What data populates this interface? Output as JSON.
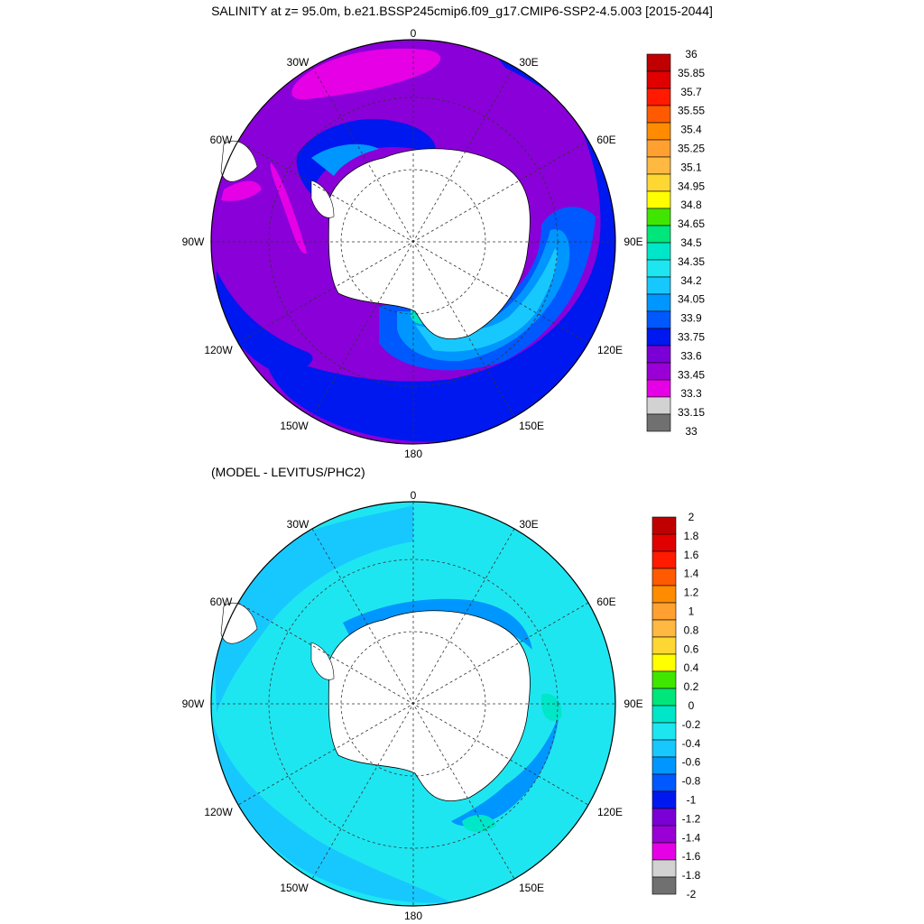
{
  "title": "SALINITY at z=  95.0m, b.e21.BSSP245cmip6.f09_g17.CMIP6-SSP2-4.5.003 [2015-2044]",
  "subtitle": "(MODEL - LEVITUS/PHC2)",
  "map_top": {
    "name": "salinity-map",
    "lon_labels": {
      "top": "0",
      "upper_left": "30W",
      "upper_right": "30E",
      "left_upper": "60W",
      "right_upper": "60E",
      "left": "90W",
      "right": "90E",
      "left_lower": "120W",
      "right_lower": "120E",
      "bottom_left": "150W",
      "bottom_right": "150E",
      "bottom": "180"
    }
  },
  "map_bottom": {
    "name": "difference-map",
    "lon_labels": {
      "top": "0",
      "upper_left": "30W",
      "upper_right": "30E",
      "left_upper": "60W",
      "right_upper": "60E",
      "left": "90W",
      "right": "90E",
      "left_lower": "120W",
      "right_lower": "120E",
      "bottom_left": "150W",
      "bottom_right": "150E",
      "bottom": "180"
    }
  },
  "colorbar_top": {
    "labels": [
      "36",
      "35.85",
      "35.7",
      "35.55",
      "35.4",
      "35.25",
      "35.1",
      "34.95",
      "34.8",
      "34.65",
      "34.5",
      "34.35",
      "34.2",
      "34.05",
      "33.9",
      "33.75",
      "33.6",
      "33.45",
      "33.3",
      "33.15",
      "33"
    ],
    "colors": [
      "#c00000",
      "#e00000",
      "#ff1a00",
      "#ff5a00",
      "#ff8c00",
      "#ffa030",
      "#ffb840",
      "#ffd733",
      "#ffff00",
      "#40e600",
      "#00e67a",
      "#00e6c8",
      "#1ee6f0",
      "#17c8ff",
      "#0096ff",
      "#0058ff",
      "#0018f0",
      "#7a00d6",
      "#9a00d6",
      "#e600e6",
      "#d2d2d2",
      "#707070"
    ]
  },
  "colorbar_bottom": {
    "labels": [
      "2",
      "1.8",
      "1.6",
      "1.4",
      "1.2",
      "1",
      "0.8",
      "0.6",
      "0.4",
      "0.2",
      "0",
      "-0.2",
      "-0.4",
      "-0.6",
      "-0.8",
      "-1",
      "-1.2",
      "-1.4",
      "-1.6",
      "-1.8",
      "-2"
    ],
    "colors": [
      "#c00000",
      "#e00000",
      "#ff1a00",
      "#ff5a00",
      "#ff8c00",
      "#ffa030",
      "#ffb840",
      "#ffd733",
      "#ffff00",
      "#40e600",
      "#00e67a",
      "#00e6c8",
      "#1ee6f0",
      "#17c8ff",
      "#0096ff",
      "#0058ff",
      "#0018f0",
      "#7a00d6",
      "#9a00d6",
      "#e600e6",
      "#d2d2d2",
      "#707070"
    ]
  }
}
